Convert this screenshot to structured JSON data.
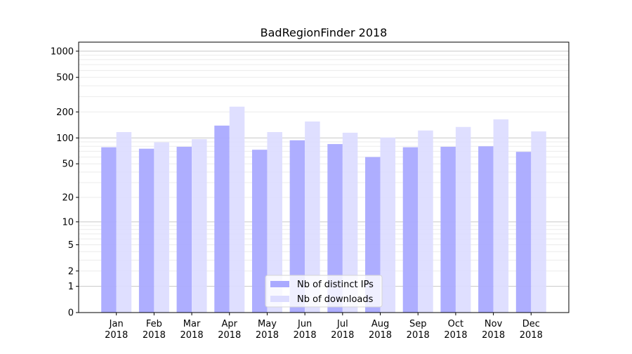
{
  "chart_data": {
    "type": "bar",
    "title": "BadRegionFinder 2018",
    "xlabel": "",
    "ylabel": "",
    "yscale": "symlog (log10(y+1))",
    "ylim": [
      0,
      1270
    ],
    "grid": "horizontal, major and minor",
    "legend_placement": "lower center",
    "categories": [
      "Jan\n2018",
      "Feb\n2018",
      "Mar\n2018",
      "Apr\n2018",
      "May\n2018",
      "Jun\n2018",
      "Jul\n2018",
      "Aug\n2018",
      "Sep\n2018",
      "Oct\n2018",
      "Nov\n2018",
      "Dec\n2018"
    ],
    "category_lines": [
      [
        "Jan",
        "2018"
      ],
      [
        "Feb",
        "2018"
      ],
      [
        "Mar",
        "2018"
      ],
      [
        "Apr",
        "2018"
      ],
      [
        "May",
        "2018"
      ],
      [
        "Jun",
        "2018"
      ],
      [
        "Jul",
        "2018"
      ],
      [
        "Aug",
        "2018"
      ],
      [
        "Sep",
        "2018"
      ],
      [
        "Oct",
        "2018"
      ],
      [
        "Nov",
        "2018"
      ],
      [
        "Dec",
        "2018"
      ]
    ],
    "yticks": [
      0,
      1,
      2,
      5,
      10,
      20,
      50,
      100,
      200,
      500,
      1000
    ],
    "ytick_labels": [
      "0",
      "1",
      "2",
      "5",
      "10",
      "20",
      "50",
      "100",
      "200",
      "500",
      "1000"
    ],
    "series": [
      {
        "name": "Nb of distinct IPs",
        "color": "#aaaaff",
        "values": [
          78,
          75,
          79,
          139,
          73,
          94,
          85,
          60,
          78,
          79,
          80,
          69
        ]
      },
      {
        "name": "Nb of downloads",
        "color": "#ddddff",
        "values": [
          117,
          89,
          97,
          230,
          117,
          155,
          115,
          101,
          122,
          134,
          164,
          119
        ]
      }
    ]
  }
}
